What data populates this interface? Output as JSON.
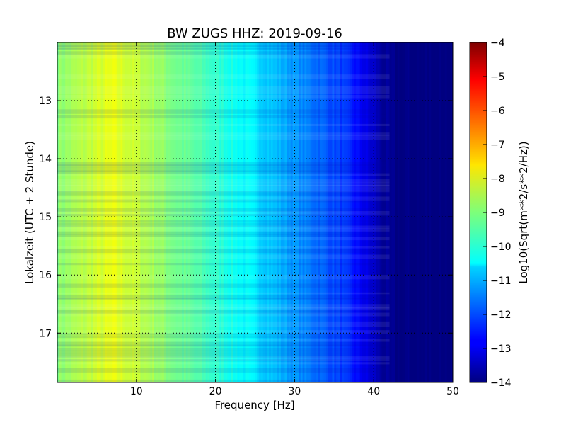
{
  "chart_data": {
    "type": "heatmap",
    "title": "BW ZUGS HHZ: 2019-09-16",
    "xlabel": "Frequency [Hz]",
    "ylabel": "Lokalzeit (UTC + 2 Stunde)",
    "xlim": [
      0,
      50
    ],
    "ylim": [
      17.85,
      12.0
    ],
    "y_inverted": true,
    "x_ticks": [
      10,
      20,
      30,
      40,
      50
    ],
    "y_ticks": [
      13,
      14,
      15,
      16,
      17
    ],
    "grid": true,
    "grid_style": "dotted",
    "colormap": "jet",
    "colorbar": {
      "label": "Log10(Sqrt(m**2/s**2/Hz))",
      "range": [
        -14,
        -4
      ],
      "ticks": [
        -4,
        -5,
        -6,
        -7,
        -8,
        -9,
        -10,
        -11,
        -12,
        -13,
        -14
      ]
    },
    "frequency_profile": {
      "x": [
        0,
        3,
        5,
        7,
        9,
        12,
        15,
        18,
        21,
        24,
        27,
        30,
        33,
        36,
        38,
        40,
        41,
        42,
        44,
        50
      ],
      "values": [
        -8.9,
        -8.5,
        -8.2,
        -8.0,
        -8.2,
        -8.6,
        -9.1,
        -9.5,
        -9.9,
        -10.3,
        -10.8,
        -11.3,
        -11.7,
        -12.2,
        -12.7,
        -13.3,
        -13.7,
        -13.9,
        -14.0,
        -14.0
      ]
    }
  }
}
